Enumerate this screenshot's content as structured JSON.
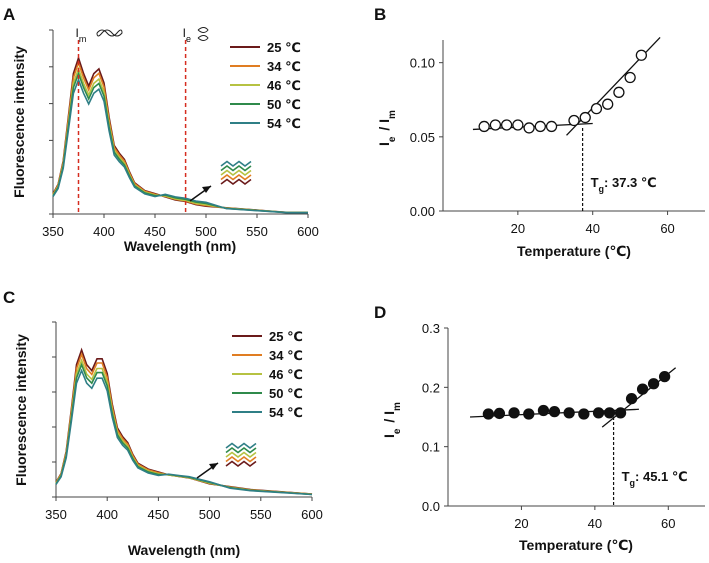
{
  "chart_data": [
    {
      "panel": "A",
      "type": "line",
      "title": "",
      "xlabel": "Wavelength (nm)",
      "ylabel": "Fluorescence intensity",
      "xlim": [
        350,
        600
      ],
      "xticks": [
        350,
        400,
        450,
        500,
        550,
        600
      ],
      "y_tick_count": 5,
      "annotations": {
        "im_label": "I",
        "im_sub": "m",
        "ie_label": "I",
        "ie_sub": "e",
        "im_x": 375,
        "ie_x": 480
      },
      "legend": [
        "25 ℃",
        "34 ℃",
        "46 ℃",
        "50 ℃",
        "54 ℃"
      ],
      "colors": [
        "#6b1a1a",
        "#e07d22",
        "#b6c242",
        "#2f8a4b",
        "#2f7f86"
      ],
      "scales": [
        1.0,
        0.97,
        0.93,
        0.9,
        0.86
      ],
      "ie_offsets": [
        0,
        0.006,
        0.013,
        0.022,
        0.032
      ],
      "x": [
        350,
        355,
        360,
        365,
        370,
        375,
        380,
        385,
        390,
        395,
        400,
        405,
        410,
        415,
        420,
        425,
        430,
        440,
        450,
        460,
        470,
        480,
        490,
        500,
        520,
        540,
        560,
        580,
        600
      ],
      "base_values": [
        0.13,
        0.19,
        0.34,
        0.62,
        0.9,
        1.0,
        0.9,
        0.82,
        0.9,
        0.93,
        0.84,
        0.62,
        0.44,
        0.39,
        0.35,
        0.27,
        0.2,
        0.15,
        0.13,
        0.11,
        0.09,
        0.08,
        0.06,
        0.05,
        0.04,
        0.03,
        0.02,
        0.01,
        0.01
      ]
    },
    {
      "panel": "B",
      "type": "scatter",
      "xlabel": "Temperature (℃)",
      "ylabel": "Ie / Im",
      "xlim": [
        0,
        70
      ],
      "ylim": [
        0,
        0.12
      ],
      "xticks": [
        20,
        40,
        60
      ],
      "yticks": [
        "0.00",
        "0.05",
        "0.10"
      ],
      "marker": "open-circle",
      "x": [
        11,
        14,
        17,
        20,
        23,
        26,
        29,
        35,
        38,
        41,
        44,
        47,
        50,
        53
      ],
      "y": [
        0.057,
        0.058,
        0.058,
        0.058,
        0.056,
        0.057,
        0.057,
        0.061,
        0.063,
        0.069,
        0.072,
        0.08,
        0.09,
        0.105
      ],
      "fit_low": [
        [
          8,
          0.055
        ],
        [
          40,
          0.059
        ]
      ],
      "fit_high": [
        [
          33,
          0.051
        ],
        [
          58,
          0.117
        ]
      ],
      "tg_value": 37.3,
      "tg_label": "T",
      "tg_sub": "g",
      "tg_text": ": 37.3 ℃"
    },
    {
      "panel": "C",
      "type": "line",
      "xlabel": "Wavelength (nm)",
      "ylabel": "Fluorescence intensity",
      "xlim": [
        350,
        600
      ],
      "xticks": [
        350,
        400,
        450,
        500,
        550,
        600
      ],
      "y_tick_count": 5,
      "legend": [
        "25 ℃",
        "34 ℃",
        "46 ℃",
        "50 ℃",
        "54 ℃"
      ],
      "colors": [
        "#6b1a1a",
        "#e07d22",
        "#b6c242",
        "#2f8a4b",
        "#2f7f86"
      ],
      "scales": [
        1.0,
        0.97,
        0.93,
        0.9,
        0.86
      ],
      "ie_offsets": [
        0,
        0.005,
        0.011,
        0.018,
        0.026
      ],
      "x": [
        350,
        355,
        360,
        365,
        370,
        375,
        380,
        385,
        390,
        395,
        400,
        405,
        410,
        415,
        420,
        425,
        430,
        440,
        450,
        460,
        470,
        480,
        490,
        500,
        520,
        540,
        560,
        580,
        600
      ],
      "base_values": [
        0.1,
        0.16,
        0.31,
        0.6,
        0.9,
        1.0,
        0.9,
        0.86,
        0.94,
        0.94,
        0.84,
        0.63,
        0.47,
        0.41,
        0.37,
        0.29,
        0.23,
        0.19,
        0.17,
        0.15,
        0.14,
        0.13,
        0.11,
        0.09,
        0.07,
        0.05,
        0.04,
        0.03,
        0.02
      ]
    },
    {
      "panel": "D",
      "type": "scatter",
      "xlabel": "Temperature (℃)",
      "ylabel": "Ie / Im",
      "xlim": [
        0,
        70
      ],
      "ylim": [
        0,
        0.3
      ],
      "xticks": [
        20,
        40,
        60
      ],
      "yticks": [
        "0.0",
        "0.1",
        "0.2",
        "0.3"
      ],
      "marker": "filled-circle",
      "x": [
        11,
        14,
        18,
        22,
        26,
        29,
        33,
        37,
        41,
        44,
        47,
        50,
        53,
        56,
        59
      ],
      "y": [
        0.155,
        0.156,
        0.157,
        0.155,
        0.161,
        0.159,
        0.157,
        0.155,
        0.157,
        0.157,
        0.157,
        0.181,
        0.197,
        0.206,
        0.218
      ],
      "fit_low": [
        [
          6,
          0.15
        ],
        [
          52,
          0.163
        ]
      ],
      "fit_high": [
        [
          42,
          0.133
        ],
        [
          62,
          0.233
        ]
      ],
      "tg_value": 45.1,
      "tg_label": "T",
      "tg_sub": "g",
      "tg_text": ": 45.1 ℃"
    }
  ]
}
